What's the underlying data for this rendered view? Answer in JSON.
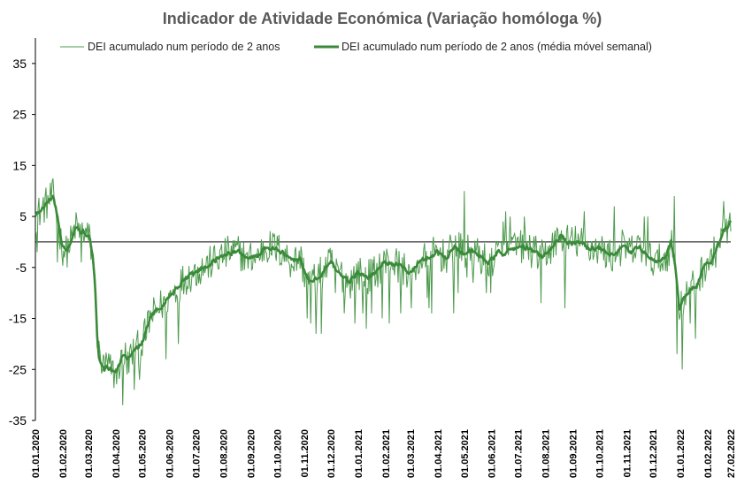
{
  "chart_data": {
    "type": "line",
    "title": "Indicador de Atividade Económica (Variação homóloga %)",
    "xlabel": "",
    "ylabel": "",
    "ylim": [
      -35,
      40
    ],
    "yticks": [
      35,
      25,
      15,
      5,
      -5,
      -15,
      -25,
      -35
    ],
    "reference_line": 0,
    "x_tick_labels": [
      "01.01.2020",
      "01.02.2020",
      "01.03.2020",
      "01.04.2020",
      "01.05.2020",
      "01.06.2020",
      "01.07.2020",
      "01.08.2020",
      "01.09.2020",
      "01.10.2020",
      "01.11.2020",
      "01.12.2020",
      "01.01.2021",
      "01.02.2021",
      "01.03.2021",
      "01.04.2021",
      "01.05.2021",
      "01.06.2021",
      "01.07.2021",
      "01.08.2021",
      "01.09.2021",
      "01.10.2021",
      "01.11.2021",
      "01.12.2021",
      "01.01.2022",
      "01.02.2022",
      "27.02.2022"
    ],
    "x_tick_days": [
      0,
      31,
      60,
      91,
      121,
      152,
      182,
      213,
      244,
      274,
      305,
      335,
      366,
      397,
      425,
      456,
      486,
      517,
      547,
      578,
      609,
      639,
      670,
      700,
      731,
      762,
      788
    ],
    "total_days": 789,
    "legend": [
      "DEI acumulado num período de 2 anos",
      "DEI acumulado num período de 2 anos (média móvel semanal)"
    ],
    "series": [
      {
        "name": "DEI acumulado num período de 2 anos",
        "style": "thin",
        "color": "#4d9a4d",
        "anchor_days": [
          0,
          10,
          20,
          25,
          30,
          35,
          40,
          45,
          50,
          55,
          60,
          62,
          65,
          68,
          70,
          72,
          75,
          78,
          80,
          85,
          90,
          95,
          100,
          105,
          110,
          115,
          120,
          125,
          130,
          140,
          150,
          160,
          170,
          180,
          190,
          200,
          210,
          220,
          230,
          240,
          250,
          260,
          270,
          280,
          290,
          300,
          305,
          310,
          320,
          330,
          335,
          345,
          355,
          365,
          375,
          385,
          395,
          405,
          415,
          425,
          435,
          445,
          455,
          465,
          475,
          485,
          495,
          505,
          515,
          525,
          535,
          545,
          555,
          565,
          575,
          585,
          595,
          605,
          615,
          625,
          635,
          645,
          655,
          665,
          675,
          685,
          695,
          705,
          715,
          720,
          725,
          728,
          730,
          733,
          736,
          740,
          745,
          750,
          755,
          760,
          765,
          770,
          775,
          780,
          785,
          788
        ],
        "anchor_values": [
          5,
          7,
          9,
          5,
          -1,
          -2,
          0,
          3,
          2,
          2,
          1,
          0,
          -3,
          -10,
          -18,
          -22,
          -24,
          -25,
          -24,
          -25,
          -26,
          -24,
          -22,
          -23,
          -22,
          -21,
          -20,
          -18,
          -15,
          -13,
          -11,
          -9,
          -7,
          -6,
          -5,
          -4,
          -3,
          -2,
          -2,
          -3,
          -3,
          -1,
          -1,
          -2,
          -4,
          -3,
          -6,
          -8,
          -7,
          -5,
          -4,
          -6,
          -8,
          -6,
          -7,
          -6,
          -4,
          -4,
          -5,
          -6,
          -4,
          -3,
          -2,
          -3,
          -1,
          -2,
          -2,
          -3,
          -4,
          -2,
          -2,
          -1,
          -1,
          -2,
          -3,
          -1,
          1,
          0,
          0,
          -1,
          -1,
          -2,
          -3,
          -1,
          -2,
          -1,
          -3,
          -4,
          -3,
          0,
          -5,
          -10,
          -13,
          -12,
          -11,
          -10,
          -9,
          -8,
          -6,
          -4,
          -4,
          -2,
          0,
          2,
          3,
          4
        ],
        "spikes": [
          [
            2,
            -2
          ],
          [
            25,
            -4
          ],
          [
            52,
            -4
          ],
          [
            94,
            -24
          ],
          [
            99,
            -32
          ],
          [
            104,
            -26
          ],
          [
            112,
            -29
          ],
          [
            118,
            -27
          ],
          [
            148,
            -23
          ],
          [
            162,
            -20
          ],
          [
            240,
            -2
          ],
          [
            308,
            -15
          ],
          [
            312,
            -16
          ],
          [
            318,
            -18
          ],
          [
            324,
            -18
          ],
          [
            340,
            -10
          ],
          [
            350,
            -14
          ],
          [
            362,
            -16
          ],
          [
            371,
            -14
          ],
          [
            375,
            -17
          ],
          [
            381,
            -14
          ],
          [
            393,
            -15
          ],
          [
            401,
            -16
          ],
          [
            414,
            -14
          ],
          [
            426,
            -13
          ],
          [
            429,
            -6
          ],
          [
            444,
            -11
          ],
          [
            446,
            -13
          ],
          [
            449,
            -14
          ],
          [
            474,
            -14
          ],
          [
            479,
            -10
          ],
          [
            486,
            10
          ],
          [
            489,
            -7
          ],
          [
            496,
            -8
          ],
          [
            511,
            -10
          ],
          [
            516,
            -10
          ],
          [
            530,
            4
          ],
          [
            533,
            6
          ],
          [
            538,
            5
          ],
          [
            554,
            5
          ],
          [
            573,
            -12
          ],
          [
            600,
            -13
          ],
          [
            622,
            6
          ],
          [
            656,
            7
          ],
          [
            690,
            5
          ],
          [
            694,
            5
          ],
          [
            724,
            9
          ],
          [
            727,
            -22
          ],
          [
            733,
            -25
          ],
          [
            742,
            -16
          ],
          [
            748,
            -19
          ],
          [
            780,
            8
          ]
        ],
        "noise_amplitude": 3.5
      },
      {
        "name": "DEI acumulado num período de 2 anos (média móvel semanal)",
        "style": "thick",
        "color": "#3a8a3a",
        "anchor_days": [
          0,
          10,
          20,
          25,
          30,
          35,
          40,
          45,
          50,
          55,
          60,
          62,
          65,
          68,
          70,
          72,
          75,
          78,
          80,
          85,
          90,
          95,
          100,
          105,
          110,
          115,
          120,
          125,
          130,
          140,
          150,
          160,
          170,
          180,
          190,
          200,
          210,
          220,
          230,
          240,
          250,
          260,
          270,
          280,
          290,
          300,
          305,
          310,
          320,
          330,
          335,
          345,
          355,
          365,
          375,
          385,
          395,
          405,
          415,
          425,
          435,
          445,
          455,
          465,
          475,
          485,
          495,
          505,
          515,
          525,
          535,
          545,
          555,
          565,
          575,
          585,
          595,
          605,
          615,
          625,
          635,
          645,
          655,
          665,
          675,
          685,
          695,
          705,
          715,
          720,
          725,
          728,
          730,
          733,
          736,
          740,
          745,
          750,
          755,
          760,
          765,
          770,
          775,
          780,
          785,
          788
        ],
        "anchor_values": [
          5,
          7,
          9,
          5,
          -1,
          -2,
          0,
          3,
          2,
          2,
          1,
          0,
          -3,
          -10,
          -18,
          -22,
          -24,
          -25,
          -24,
          -25,
          -26,
          -24,
          -22,
          -23,
          -22,
          -21,
          -20,
          -18,
          -15,
          -13,
          -11,
          -9,
          -7,
          -6,
          -5,
          -4,
          -3,
          -2,
          -2,
          -3,
          -3,
          -1,
          -1,
          -2,
          -4,
          -3,
          -6,
          -8,
          -7,
          -5,
          -4,
          -6,
          -8,
          -6,
          -7,
          -6,
          -4,
          -4,
          -5,
          -6,
          -4,
          -3,
          -2,
          -3,
          -1,
          -2,
          -2,
          -3,
          -4,
          -2,
          -2,
          -1,
          -1,
          -2,
          -3,
          -1,
          1,
          0,
          0,
          -1,
          -1,
          -2,
          -3,
          -1,
          -2,
          -1,
          -3,
          -4,
          -3,
          0,
          -5,
          -10,
          -13,
          -12,
          -11,
          -10,
          -9,
          -8,
          -6,
          -4,
          -4,
          -2,
          0,
          2,
          3,
          4
        ],
        "noise_amplitude": 1.0
      }
    ]
  }
}
